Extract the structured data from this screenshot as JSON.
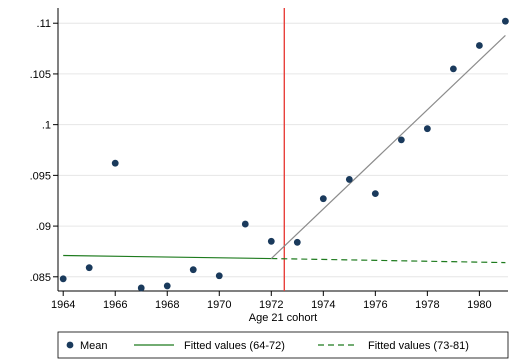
{
  "chart_data": {
    "type": "scatter",
    "title": "",
    "xlabel": "Age 21 cohort",
    "ylabel": "",
    "xlim": [
      1963.8,
      1981.1
    ],
    "ylim": [
      0.0836,
      0.1115
    ],
    "x_ticks": [
      1964,
      1966,
      1968,
      1970,
      1972,
      1974,
      1976,
      1978,
      1980
    ],
    "y_ticks": [
      0.085,
      0.09,
      0.095,
      0.1,
      0.105,
      0.11
    ],
    "y_tick_labels": [
      ".085",
      ".09",
      ".095",
      ".1",
      ".105",
      ".11"
    ],
    "grid": "horizontal",
    "vertical_line": {
      "x": 1972.5,
      "color": "#e8413c"
    },
    "series": [
      {
        "name": "Mean",
        "kind": "scatter",
        "color": "#1a3a5c",
        "points": [
          [
            1964,
            0.0848
          ],
          [
            1965,
            0.0859
          ],
          [
            1966,
            0.0962
          ],
          [
            1967,
            0.0839
          ],
          [
            1968,
            0.0841
          ],
          [
            1969,
            0.0857
          ],
          [
            1970,
            0.0851
          ],
          [
            1971,
            0.0902
          ],
          [
            1972,
            0.0885
          ],
          [
            1973,
            0.0884
          ],
          [
            1974,
            0.0927
          ],
          [
            1975,
            0.0946
          ],
          [
            1976,
            0.0932
          ],
          [
            1977,
            0.0985
          ],
          [
            1978,
            0.0996
          ],
          [
            1979,
            0.1055
          ],
          [
            1980,
            0.1078
          ],
          [
            1981,
            0.1102
          ]
        ]
      },
      {
        "name": "Fitted values (64-72)",
        "kind": "line",
        "style": "solid",
        "color": "#1e7b1e",
        "points": [
          [
            1964,
            0.0871
          ],
          [
            1972,
            0.0868
          ]
        ]
      },
      {
        "name": "Fitted values (73-81)",
        "kind": "line",
        "style": "dashed",
        "color": "#1e7b1e",
        "points": [
          [
            1972,
            0.0868
          ],
          [
            1981,
            0.0864
          ]
        ]
      },
      {
        "name": "",
        "kind": "line",
        "style": "solid",
        "color": "#8c8c8c",
        "points": [
          [
            1972,
            0.0868
          ],
          [
            1981,
            0.1088
          ]
        ]
      }
    ],
    "legend": {
      "position": "bottom",
      "entries": [
        "Mean",
        "Fitted values (64-72)",
        "Fitted values (73-81)"
      ]
    }
  }
}
